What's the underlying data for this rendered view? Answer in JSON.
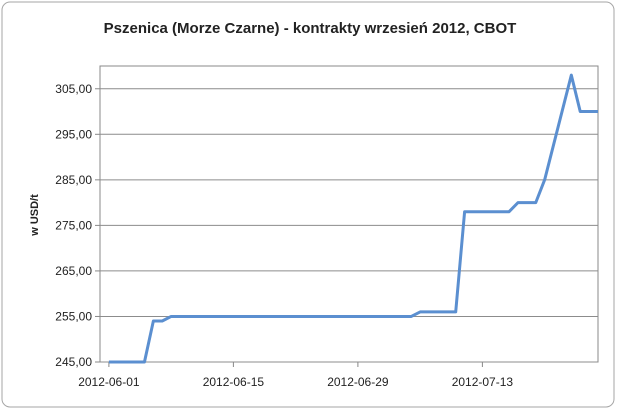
{
  "chart_data": {
    "type": "line",
    "title": "Pszenica (Morze Czarne) - kontrakty wrzesień 2012, CBOT",
    "y_label": "w USD/t",
    "x": [
      "2012-06-01",
      "2012-06-04",
      "2012-06-05",
      "2012-06-06",
      "2012-06-07",
      "2012-06-08",
      "2012-06-11",
      "2012-06-12",
      "2012-06-13",
      "2012-06-14",
      "2012-06-15",
      "2012-06-18",
      "2012-06-19",
      "2012-06-20",
      "2012-06-21",
      "2012-06-22",
      "2012-06-25",
      "2012-06-26",
      "2012-06-27",
      "2012-06-28",
      "2012-06-29",
      "2012-07-02",
      "2012-07-03",
      "2012-07-05",
      "2012-07-06",
      "2012-07-09",
      "2012-07-10",
      "2012-07-11",
      "2012-07-12",
      "2012-07-13",
      "2012-07-16",
      "2012-07-17",
      "2012-07-18",
      "2012-07-19",
      "2012-07-20",
      "2012-07-23",
      "2012-07-24",
      "2012-07-25",
      "2012-07-26"
    ],
    "series": [
      {
        "name": "Pszenica",
        "color": "#5b8fd0",
        "values": [
          245,
          245,
          245,
          254,
          254,
          255,
          255,
          255,
          255,
          255,
          255,
          255,
          255,
          255,
          255,
          255,
          255,
          255,
          255,
          255,
          255,
          255,
          255,
          255,
          256,
          256,
          256,
          278,
          278,
          278,
          278,
          280,
          280,
          280,
          285,
          308,
          300,
          300,
          300
        ]
      }
    ],
    "xlim": [
      "2012-05-31",
      "2012-07-26"
    ],
    "xticks": [
      "2012-06-01",
      "2012-06-15",
      "2012-06-29",
      "2012-07-13"
    ],
    "ylim": [
      245,
      310
    ],
    "yticks": [
      {
        "value": 245,
        "label": "245,00"
      },
      {
        "value": 255,
        "label": "255,00"
      },
      {
        "value": 265,
        "label": "265,00"
      },
      {
        "value": 275,
        "label": "275,00"
      },
      {
        "value": 285,
        "label": "285,00"
      },
      {
        "value": 295,
        "label": "295,00"
      },
      {
        "value": 305,
        "label": "305,00"
      }
    ],
    "grid": true
  }
}
